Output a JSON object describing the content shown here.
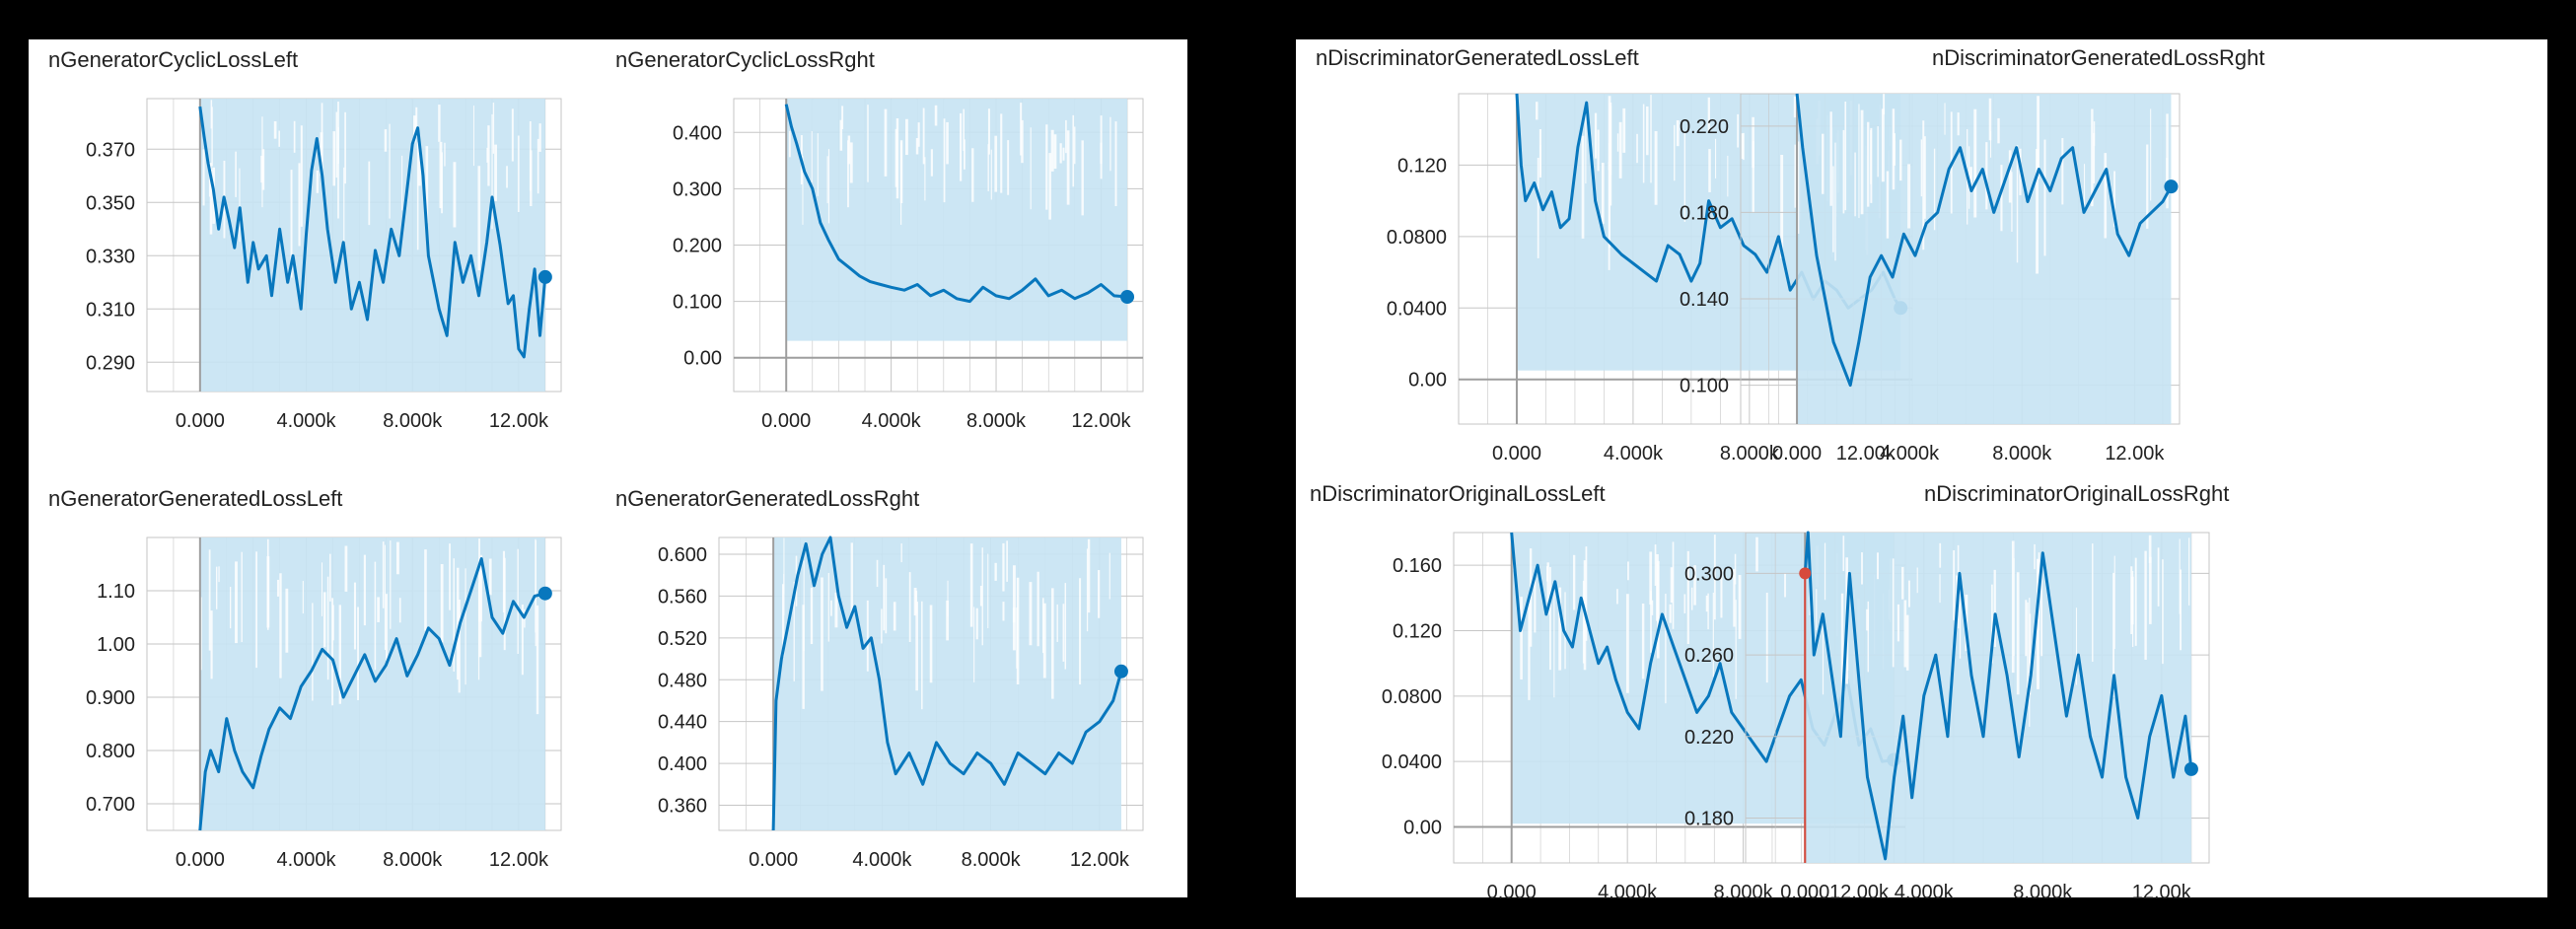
{
  "panels": {
    "left": {
      "charts": [
        {
          "title": "nGeneratorCyclicLossLeft"
        },
        {
          "title": "nGeneratorCyclicLossRght"
        },
        {
          "title": "nGeneratorGeneratedLossLeft"
        },
        {
          "title": "nGeneratorGeneratedLossRght"
        }
      ]
    },
    "right": {
      "charts": [
        {
          "title": "nDiscriminatorGeneratedLossLeft"
        },
        {
          "title": "nDiscriminatorGeneratedLossRght"
        },
        {
          "title": "nDiscriminatorOriginalLossLeft"
        },
        {
          "title": "nDiscriminatorOriginalLossRght"
        }
      ]
    }
  },
  "colors": {
    "line": "#0877bd",
    "band": "#c6e3f3",
    "grid": "#c6c6c6",
    "axis": "#8c8c8c",
    "zero_axis": "#9e9e9e",
    "start_marker": "#d74a3c",
    "tick_text": "#212121",
    "title_text": "#212121"
  },
  "chart_data": [
    {
      "type": "line",
      "title": "nGeneratorCyclicLossLeft",
      "xlabel": "",
      "ylabel": "",
      "x_ticks": [
        "0.000",
        "4.000k",
        "8.000k",
        "12.00k"
      ],
      "x_tick_values": [
        0,
        4000,
        8000,
        12000
      ],
      "y_ticks": [
        "0.290",
        "0.310",
        "0.330",
        "0.350",
        "0.370"
      ],
      "y_tick_values": [
        0.29,
        0.31,
        0.33,
        0.35,
        0.37
      ],
      "xlim": [
        -2000,
        13600
      ],
      "ylim": [
        0.279,
        0.389
      ],
      "grid": true,
      "band_range": [
        0.279,
        0.389
      ],
      "series": [
        {
          "x": [
            0,
            150,
            300,
            500,
            700,
            900,
            1100,
            1300,
            1500,
            1800,
            2000,
            2200,
            2500,
            2700,
            3000,
            3300,
            3500,
            3800,
            4000,
            4200,
            4400,
            4600,
            4800,
            5100,
            5400,
            5700,
            6000,
            6300,
            6600,
            6900,
            7200,
            7500,
            7800,
            8000,
            8200,
            8400,
            8600,
            8800,
            9000,
            9300,
            9600,
            9900,
            10200,
            10500,
            10800,
            11000,
            11300,
            11600,
            11800,
            12000,
            12200,
            12400,
            12600,
            12800,
            13000
          ],
          "y": [
            0.386,
            0.375,
            0.365,
            0.355,
            0.34,
            0.352,
            0.343,
            0.333,
            0.348,
            0.32,
            0.335,
            0.325,
            0.33,
            0.315,
            0.34,
            0.32,
            0.33,
            0.31,
            0.338,
            0.362,
            0.374,
            0.36,
            0.34,
            0.32,
            0.335,
            0.31,
            0.32,
            0.306,
            0.332,
            0.32,
            0.34,
            0.33,
            0.355,
            0.372,
            0.378,
            0.36,
            0.33,
            0.32,
            0.31,
            0.3,
            0.335,
            0.32,
            0.33,
            0.315,
            0.335,
            0.352,
            0.334,
            0.312,
            0.315,
            0.295,
            0.292,
            0.31,
            0.325,
            0.3,
            0.322
          ]
        }
      ],
      "end_value": 0.322
    },
    {
      "type": "line",
      "title": "nGeneratorCyclicLossRght",
      "xlabel": "",
      "ylabel": "",
      "x_ticks": [
        "0.000",
        "4.000k",
        "8.000k",
        "12.00k"
      ],
      "x_tick_values": [
        0,
        4000,
        8000,
        12000
      ],
      "y_ticks": [
        "0.00",
        "0.100",
        "0.200",
        "0.300",
        "0.400"
      ],
      "y_tick_values": [
        0,
        0.1,
        0.2,
        0.3,
        0.4
      ],
      "xlim": [
        -2000,
        13600
      ],
      "ylim": [
        -0.06,
        0.46
      ],
      "grid": true,
      "band_range": [
        0.03,
        0.46
      ],
      "series": [
        {
          "x": [
            0,
            200,
            400,
            700,
            1000,
            1300,
            1600,
            2000,
            2400,
            2800,
            3200,
            3600,
            4000,
            4500,
            5000,
            5500,
            6000,
            6500,
            7000,
            7500,
            8000,
            8500,
            9000,
            9500,
            10000,
            10500,
            11000,
            11500,
            12000,
            12500,
            13000
          ],
          "y": [
            0.45,
            0.41,
            0.38,
            0.33,
            0.3,
            0.24,
            0.21,
            0.175,
            0.16,
            0.145,
            0.135,
            0.13,
            0.125,
            0.12,
            0.13,
            0.11,
            0.12,
            0.105,
            0.1,
            0.125,
            0.11,
            0.105,
            0.12,
            0.14,
            0.11,
            0.12,
            0.105,
            0.115,
            0.13,
            0.11,
            0.108
          ]
        }
      ],
      "end_value": 0.108
    },
    {
      "type": "line",
      "title": "nGeneratorGeneratedLossLeft",
      "xlabel": "",
      "ylabel": "",
      "x_ticks": [
        "0.000",
        "4.000k",
        "8.000k",
        "12.00k"
      ],
      "x_tick_values": [
        0,
        4000,
        8000,
        12000
      ],
      "y_ticks": [
        "0.700",
        "0.800",
        "0.900",
        "1.00",
        "1.10"
      ],
      "y_tick_values": [
        0.7,
        0.8,
        0.9,
        1.0,
        1.1
      ],
      "xlim": [
        -2000,
        13600
      ],
      "ylim": [
        0.65,
        1.2
      ],
      "grid": true,
      "band_range": [
        0.65,
        1.2
      ],
      "series": [
        {
          "x": [
            0,
            200,
            400,
            700,
            1000,
            1300,
            1600,
            2000,
            2300,
            2600,
            3000,
            3400,
            3800,
            4200,
            4600,
            5000,
            5400,
            5800,
            6200,
            6600,
            7000,
            7400,
            7800,
            8200,
            8600,
            9000,
            9400,
            9800,
            10200,
            10600,
            11000,
            11400,
            11800,
            12200,
            12600,
            13000
          ],
          "y": [
            0.65,
            0.76,
            0.8,
            0.76,
            0.86,
            0.8,
            0.76,
            0.73,
            0.79,
            0.84,
            0.88,
            0.86,
            0.92,
            0.95,
            0.99,
            0.97,
            0.9,
            0.94,
            0.98,
            0.93,
            0.96,
            1.01,
            0.94,
            0.98,
            1.03,
            1.01,
            0.96,
            1.04,
            1.1,
            1.16,
            1.05,
            1.02,
            1.08,
            1.05,
            1.09,
            1.095
          ]
        }
      ],
      "end_value": 1.095
    },
    {
      "type": "line",
      "title": "nGeneratorGeneratedLossRght",
      "xlabel": "",
      "ylabel": "",
      "x_ticks": [
        "0.000",
        "4.000k",
        "8.000k",
        "12.00k"
      ],
      "x_tick_values": [
        0,
        4000,
        8000,
        12000
      ],
      "y_ticks": [
        "0.360",
        "0.400",
        "0.440",
        "0.480",
        "0.520",
        "0.560",
        "0.600"
      ],
      "y_tick_values": [
        0.36,
        0.4,
        0.44,
        0.48,
        0.52,
        0.56,
        0.6
      ],
      "xlim": [
        -2000,
        13600
      ],
      "ylim": [
        0.336,
        0.616
      ],
      "grid": true,
      "band_range": [
        0.336,
        0.616
      ],
      "series": [
        {
          "x": [
            0,
            100,
            300,
            600,
            900,
            1200,
            1500,
            1800,
            2100,
            2400,
            2700,
            3000,
            3300,
            3600,
            3900,
            4200,
            4500,
            5000,
            5500,
            6000,
            6500,
            7000,
            7500,
            8000,
            8500,
            9000,
            9500,
            10000,
            10500,
            11000,
            11500,
            12000,
            12500,
            12800
          ],
          "y": [
            0.336,
            0.46,
            0.5,
            0.54,
            0.58,
            0.61,
            0.57,
            0.6,
            0.616,
            0.56,
            0.53,
            0.55,
            0.51,
            0.52,
            0.48,
            0.42,
            0.39,
            0.41,
            0.38,
            0.42,
            0.4,
            0.39,
            0.41,
            0.4,
            0.38,
            0.41,
            0.4,
            0.39,
            0.41,
            0.4,
            0.43,
            0.44,
            0.46,
            0.488
          ]
        }
      ],
      "end_value": 0.488
    },
    {
      "type": "line",
      "title": "nDiscriminatorGeneratedLossLeft",
      "xlabel": "",
      "ylabel": "",
      "x_ticks": [
        "0.000",
        "4.000k",
        "8.000k",
        "12.00k"
      ],
      "x_tick_values": [
        0,
        4000,
        8000,
        12000
      ],
      "y_ticks": [
        "0.00",
        "0.0400",
        "0.0800",
        "0.120"
      ],
      "y_tick_values": [
        0,
        0.04,
        0.08,
        0.12
      ],
      "xlim": [
        -2000,
        13600
      ],
      "ylim": [
        -0.025,
        0.16
      ],
      "grid": true,
      "band_range": [
        0.005,
        0.16
      ],
      "series": [
        {
          "x": [
            0,
            150,
            300,
            600,
            900,
            1200,
            1500,
            1800,
            2100,
            2400,
            2700,
            3000,
            3300,
            3600,
            4000,
            4400,
            4800,
            5200,
            5600,
            6000,
            6300,
            6600,
            7000,
            7400,
            7800,
            8200,
            8600,
            9000,
            9400,
            9800,
            10200,
            10600,
            11000,
            11400,
            11800,
            12200,
            12600,
            13000,
            13200
          ],
          "y": [
            0.16,
            0.12,
            0.1,
            0.11,
            0.095,
            0.105,
            0.085,
            0.09,
            0.13,
            0.155,
            0.1,
            0.08,
            0.075,
            0.07,
            0.065,
            0.06,
            0.055,
            0.075,
            0.07,
            0.055,
            0.065,
            0.1,
            0.085,
            0.09,
            0.075,
            0.07,
            0.06,
            0.08,
            0.05,
            0.06,
            0.045,
            0.055,
            0.05,
            0.04,
            0.045,
            0.05,
            0.06,
            0.045,
            0.04
          ]
        }
      ],
      "end_value": 0.04
    },
    {
      "type": "line",
      "title": "nDiscriminatorGeneratedLossRght",
      "xlabel": "",
      "ylabel": "",
      "x_ticks": [
        "0.000",
        "4.000k",
        "8.000k",
        "12.00k"
      ],
      "x_tick_values": [
        0,
        4000,
        8000,
        12000
      ],
      "y_ticks": [
        "0.100",
        "0.140",
        "0.180",
        "0.220"
      ],
      "y_tick_values": [
        0.1,
        0.14,
        0.18,
        0.22
      ],
      "xlim": [
        -2000,
        13600
      ],
      "ylim": [
        0.082,
        0.235
      ],
      "grid": true,
      "band_range": [
        0.082,
        0.235
      ],
      "series": [
        {
          "x": [
            0,
            200,
            400,
            700,
            1000,
            1300,
            1600,
            1900,
            2200,
            2600,
            3000,
            3400,
            3800,
            4200,
            4600,
            5000,
            5400,
            5800,
            6200,
            6600,
            7000,
            7400,
            7800,
            8200,
            8600,
            9000,
            9400,
            9800,
            10200,
            10600,
            11000,
            11400,
            11800,
            12200,
            12600,
            13000,
            13300
          ],
          "y": [
            0.235,
            0.21,
            0.19,
            0.16,
            0.14,
            0.12,
            0.11,
            0.1,
            0.12,
            0.15,
            0.16,
            0.15,
            0.17,
            0.16,
            0.175,
            0.18,
            0.2,
            0.21,
            0.19,
            0.2,
            0.18,
            0.195,
            0.21,
            0.185,
            0.2,
            0.19,
            0.205,
            0.21,
            0.18,
            0.19,
            0.2,
            0.17,
            0.16,
            0.175,
            0.18,
            0.185,
            0.192
          ]
        }
      ],
      "end_value": 0.192
    },
    {
      "type": "line",
      "title": "nDiscriminatorOriginalLossLeft",
      "xlabel": "",
      "ylabel": "",
      "x_ticks": [
        "0.000",
        "4.000k",
        "8.000k",
        "12.00k"
      ],
      "x_tick_values": [
        0,
        4000,
        8000,
        12000
      ],
      "y_ticks": [
        "0.00",
        "0.0400",
        "0.0800",
        "0.120",
        "0.160"
      ],
      "y_tick_values": [
        0,
        0.04,
        0.08,
        0.12,
        0.16
      ],
      "xlim": [
        -2000,
        13600
      ],
      "ylim": [
        -0.022,
        0.18
      ],
      "grid": true,
      "band_range": [
        0.002,
        0.18
      ],
      "series": [
        {
          "x": [
            0,
            150,
            300,
            600,
            900,
            1200,
            1500,
            1800,
            2100,
            2400,
            2700,
            3000,
            3300,
            3600,
            4000,
            4400,
            4800,
            5200,
            5600,
            6000,
            6400,
            6800,
            7200,
            7600,
            8000,
            8400,
            8800,
            9200,
            9600,
            10000,
            10400,
            10800,
            11200,
            11600,
            12000,
            12400,
            12800,
            13200
          ],
          "y": [
            0.18,
            0.15,
            0.12,
            0.14,
            0.16,
            0.13,
            0.15,
            0.12,
            0.11,
            0.14,
            0.12,
            0.1,
            0.11,
            0.09,
            0.07,
            0.06,
            0.1,
            0.13,
            0.11,
            0.09,
            0.07,
            0.08,
            0.1,
            0.07,
            0.06,
            0.05,
            0.04,
            0.06,
            0.08,
            0.09,
            0.06,
            0.05,
            0.07,
            0.09,
            0.05,
            0.06,
            0.04,
            0.041
          ]
        }
      ],
      "end_value": 0.041
    },
    {
      "type": "line",
      "title": "nDiscriminatorOriginalLossRght",
      "xlabel": "",
      "ylabel": "",
      "x_ticks": [
        "0.000",
        "4.000k",
        "8.000k",
        "12.00k"
      ],
      "x_tick_values": [
        0,
        4000,
        8000,
        12000
      ],
      "y_ticks": [
        "0.180",
        "0.220",
        "0.260",
        "0.300"
      ],
      "y_tick_values": [
        0.18,
        0.22,
        0.26,
        0.3
      ],
      "xlim": [
        -2000,
        13600
      ],
      "ylim": [
        0.158,
        0.32
      ],
      "grid": true,
      "band_range": [
        0.158,
        0.32
      ],
      "series": [
        {
          "x": [
            0,
            100,
            300,
            600,
            900,
            1200,
            1500,
            1800,
            2100,
            2400,
            2700,
            3000,
            3300,
            3600,
            4000,
            4400,
            4800,
            5200,
            5600,
            6000,
            6400,
            6800,
            7200,
            7600,
            8000,
            8400,
            8800,
            9200,
            9600,
            10000,
            10400,
            10800,
            11200,
            11600,
            12000,
            12400,
            12800,
            13000
          ],
          "y": [
            0.3,
            0.32,
            0.26,
            0.28,
            0.25,
            0.22,
            0.3,
            0.25,
            0.2,
            0.18,
            0.16,
            0.2,
            0.23,
            0.19,
            0.24,
            0.26,
            0.22,
            0.3,
            0.25,
            0.22,
            0.28,
            0.25,
            0.21,
            0.25,
            0.31,
            0.27,
            0.23,
            0.26,
            0.22,
            0.2,
            0.25,
            0.2,
            0.18,
            0.22,
            0.24,
            0.2,
            0.23,
            0.204
          ]
        }
      ],
      "end_value": 0.204,
      "start_marker_value": 0.3
    }
  ]
}
